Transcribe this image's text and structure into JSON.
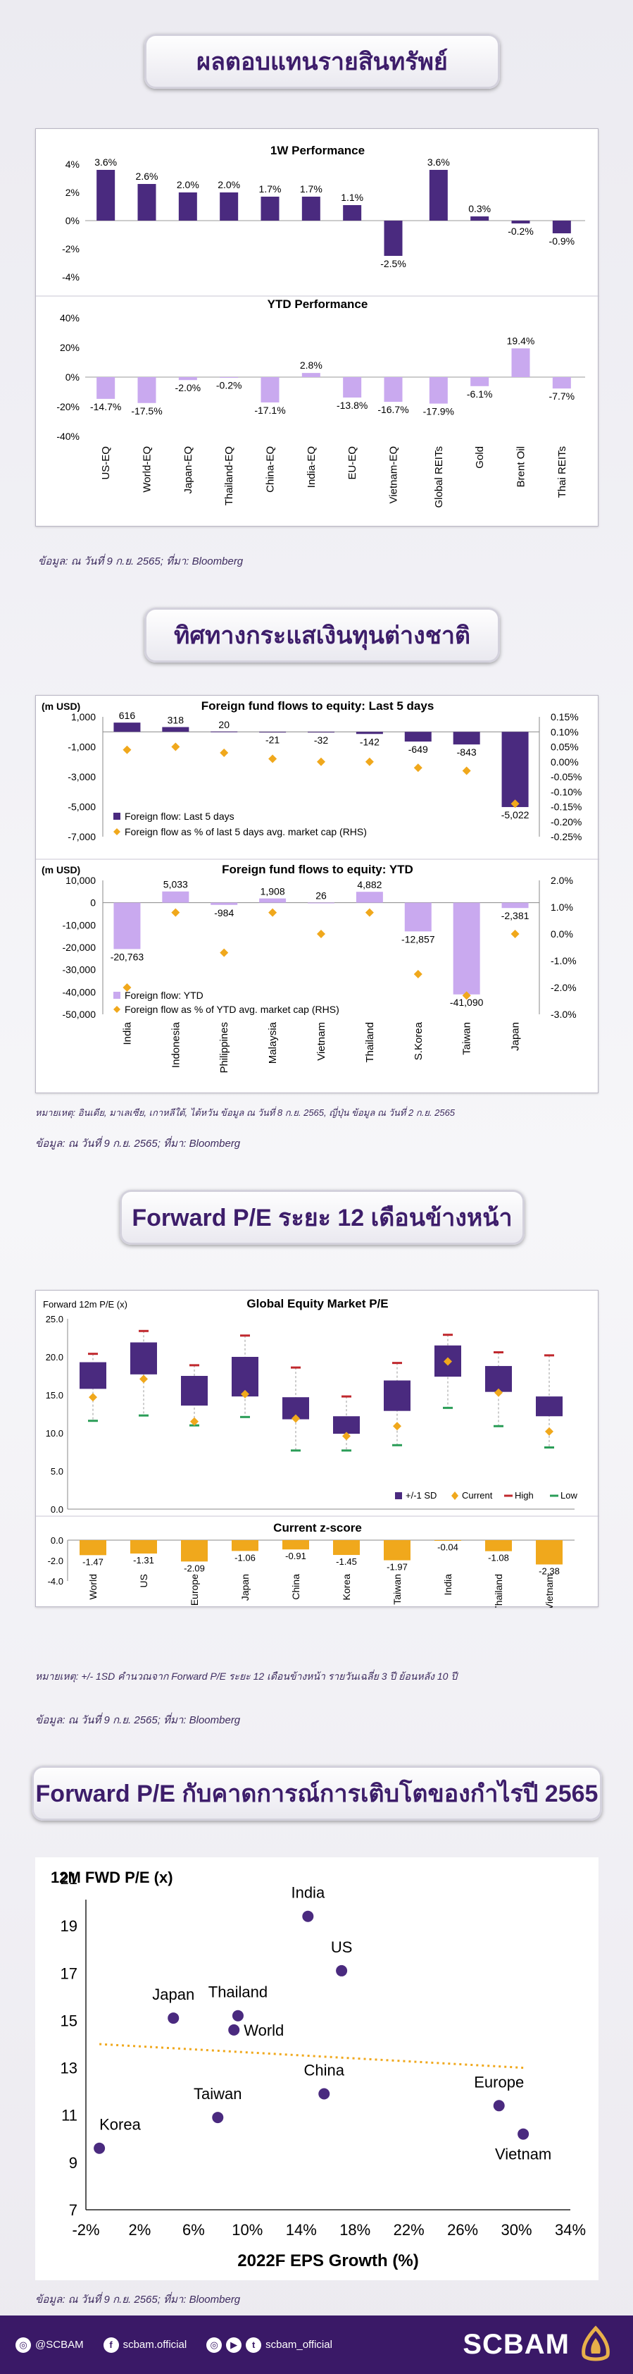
{
  "sections": {
    "asset_returns_title": "ผลตอบแทนรายสินทรัพย์",
    "foreign_flows_title": "ทิศทางกระแสเงินทุนต่างชาติ",
    "forward_pe_title": "Forward P/E ระยะ 12 เดือนข้างหน้า",
    "pe_vs_eps_title": "Forward P/E กับคาดการณ์การเติบโตของกำไรปี 2565"
  },
  "notes": {
    "source_1": "ข้อมูล: ณ วันที่ 9 ก.ย. 2565; ที่มา: Bloomberg",
    "remark_2": "หมายเหตุ: อินเดีย, มาเลเซีย, เกาหลีใต้, ไต้หวัน ข้อมูล ณ วันที่ 8 ก.ย. 2565, ญี่ปุ่น ข้อมูล ณ วันที่ 2 ก.ย. 2565",
    "source_2": "ข้อมูล: ณ วันที่ 9 ก.ย. 2565; ที่มา: Bloomberg",
    "remark_3": "หมายเหตุ: +/- 1SD คำนวณจาก Forward P/E ระยะ 12 เดือนข้างหน้า รายวันเฉลี่ย 3 ปี ย้อนหลัง 10 ปี",
    "source_3": "ข้อมูล: ณ วันที่ 9 ก.ย. 2565; ที่มา: Bloomberg",
    "source_4": "ข้อมูล: ณ วันที่ 9 ก.ย. 2565; ที่มา: Bloomberg"
  },
  "footer": {
    "ig_handle": "@SCBAM",
    "fb_handle": "scbam.official",
    "tw_handle": "scbam_official",
    "brand": "SCBAM"
  },
  "chart_data": [
    {
      "type": "bar",
      "title": "1W Performance",
      "categories": [
        "US-EQ",
        "World-EQ",
        "Japan-EQ",
        "Thailand-EQ",
        "China-EQ",
        "India-EQ",
        "EU-EQ",
        "Vietnam-EQ",
        "Global REITs",
        "Gold",
        "Brent Oil",
        "Thai REITs"
      ],
      "values": [
        3.6,
        2.6,
        2.0,
        2.0,
        1.7,
        1.7,
        1.1,
        -2.5,
        3.6,
        0.3,
        -0.2,
        -0.9
      ],
      "data_labels": [
        "3.6%",
        "2.6%",
        "2.0%",
        "2.0%",
        "1.7%",
        "1.7%",
        "1.1%",
        "-2.5%",
        "3.6%",
        "0.3%",
        "-0.2%",
        "-0.9%"
      ],
      "y_ticks": [
        "4%",
        "2%",
        "0%",
        "-2%",
        "-4%"
      ],
      "ylim": [
        -4,
        4
      ],
      "color": "#4a2a7f"
    },
    {
      "type": "bar",
      "title": "YTD Performance",
      "categories": [
        "US-EQ",
        "World-EQ",
        "Japan-EQ",
        "Thailand-EQ",
        "China-EQ",
        "India-EQ",
        "EU-EQ",
        "Vietnam-EQ",
        "Global REITs",
        "Gold",
        "Brent Oil",
        "Thai REITs"
      ],
      "values": [
        -14.7,
        -17.5,
        -2.0,
        -0.2,
        -17.1,
        2.8,
        -13.8,
        -16.7,
        -17.9,
        -6.1,
        19.4,
        -7.7
      ],
      "data_labels": [
        "-14.7%",
        "-17.5%",
        "-2.0%",
        "-0.2%",
        "-17.1%",
        "2.8%",
        "-13.8%",
        "-16.7%",
        "-17.9%",
        "-6.1%",
        "19.4%",
        "-7.7%"
      ],
      "y_ticks": [
        "40%",
        "20%",
        "0%",
        "-20%",
        "-40%"
      ],
      "ylim": [
        -40,
        40
      ],
      "color": "#c9a9ef"
    },
    {
      "type": "bar",
      "title": "Foreign fund flows to equity: Last 5 days",
      "ylabel": "(m USD)",
      "categories": [
        "India",
        "Indonesia",
        "Philippines",
        "Malaysia",
        "Vietnam",
        "Thailand",
        "S.Korea",
        "Taiwan",
        "Japan"
      ],
      "series": [
        {
          "name": "Foreign flow: Last 5 days",
          "values": [
            616,
            318,
            20,
            -21,
            -32,
            -142,
            -649,
            -843,
            -5022
          ],
          "color": "#4a2a7f"
        },
        {
          "name": "Foreign flow as % of last 5 days avg. market cap (RHS)",
          "values": [
            0.04,
            0.05,
            0.03,
            0.01,
            0.0,
            0.0,
            -0.02,
            -0.03,
            -0.14
          ],
          "color": "#f0a81c"
        }
      ],
      "data_labels": [
        "616",
        "318",
        "20",
        "-21",
        "-32",
        "-142",
        "-649",
        "-843",
        "-5,022"
      ],
      "y_ticks": [
        "1,000",
        "-1,000",
        "-3,000",
        "-5,000",
        "-7,000"
      ],
      "ylim": [
        -7000,
        1000
      ],
      "y2_ticks": [
        "0.15%",
        "0.10%",
        "0.05%",
        "0.00%",
        "-0.05%",
        "-0.10%",
        "-0.15%",
        "-0.20%",
        "-0.25%"
      ],
      "y2lim": [
        -0.25,
        0.15
      ]
    },
    {
      "type": "bar",
      "title": "Foreign fund flows to equity: YTD",
      "ylabel": "(m USD)",
      "categories": [
        "India",
        "Indonesia",
        "Philippines",
        "Malaysia",
        "Vietnam",
        "Thailand",
        "S.Korea",
        "Taiwan",
        "Japan"
      ],
      "series": [
        {
          "name": "Foreign flow: YTD",
          "values": [
            -20763,
            5033,
            -984,
            1908,
            26,
            4882,
            -12857,
            -41090,
            -2381
          ],
          "color": "#c9a9ef"
        },
        {
          "name": "Foreign flow as % of YTD avg. market cap (RHS)",
          "values": [
            -2.0,
            0.8,
            -0.7,
            0.8,
            0.0,
            0.8,
            -1.5,
            -2.3,
            0.0
          ],
          "color": "#f0a81c"
        }
      ],
      "data_labels": [
        "-20,763",
        "5,033",
        "-984",
        "1,908",
        "26",
        "4,882",
        "-12,857",
        "-41,090",
        "-2,381"
      ],
      "y_ticks": [
        "10,000",
        "0",
        "-10,000",
        "-20,000",
        "-30,000",
        "-40,000",
        "-50,000"
      ],
      "ylim": [
        -50000,
        10000
      ],
      "y2_ticks": [
        "2.0%",
        "1.0%",
        "0.0%",
        "-1.0%",
        "-2.0%",
        "-3.0%"
      ],
      "y2lim": [
        -3,
        2
      ]
    },
    {
      "type": "box",
      "title": "Global Equity Market P/E",
      "ylabel": "Forward 12m P/E (x)",
      "categories": [
        "World",
        "US",
        "Europe",
        "Japan",
        "China",
        "Korea",
        "Taiwan",
        "India",
        "Thailand",
        "Vietnam"
      ],
      "sd_low": [
        15.8,
        17.7,
        13.6,
        14.8,
        11.8,
        9.9,
        12.9,
        17.4,
        15.4,
        12.2
      ],
      "sd_high": [
        19.3,
        21.9,
        17.5,
        20.0,
        14.7,
        12.2,
        16.9,
        21.5,
        18.8,
        14.8
      ],
      "current": [
        14.7,
        17.1,
        11.5,
        15.1,
        11.9,
        9.6,
        10.9,
        19.4,
        15.3,
        10.2
      ],
      "high": [
        20.4,
        23.4,
        18.9,
        22.8,
        18.6,
        14.8,
        19.2,
        22.9,
        20.6,
        20.2
      ],
      "low": [
        11.6,
        12.3,
        11.0,
        12.1,
        7.7,
        7.7,
        8.4,
        13.3,
        10.9,
        8.1
      ],
      "legend": [
        "+/-1 SD",
        "Current",
        "High",
        "Low"
      ],
      "y_ticks": [
        "25.0",
        "20.0",
        "15.0",
        "10.0",
        "5.0",
        "0.0"
      ],
      "ylim": [
        0,
        25
      ],
      "colors": {
        "box": "#4a2a7f",
        "current": "#f0a81c",
        "high": "#c0282d",
        "low": "#2a9d57"
      }
    },
    {
      "type": "bar",
      "title": "Current z-score",
      "categories": [
        "World",
        "US",
        "Europe",
        "Japan",
        "China",
        "Korea",
        "Taiwan",
        "India",
        "Thailand",
        "Vietnam"
      ],
      "values": [
        -1.47,
        -1.31,
        -2.09,
        -1.06,
        -0.91,
        -1.45,
        -1.97,
        -0.04,
        -1.08,
        -2.38
      ],
      "data_labels": [
        "-1.47",
        "-1.31",
        "-2.09",
        "-1.06",
        "-0.91",
        "-1.45",
        "-1.97",
        "-0.04",
        "-1.08",
        "-2.38"
      ],
      "y_ticks": [
        "0.0",
        "-2.0",
        "-4.0"
      ],
      "ylim": [
        -4,
        0
      ],
      "color": "#f0a81c"
    },
    {
      "type": "scatter",
      "title": "12M FWD P/E (x)",
      "xlabel": "2022F EPS Growth (%)",
      "points": [
        {
          "label": "India",
          "x": 14.5,
          "y": 19.4
        },
        {
          "label": "US",
          "x": 17.0,
          "y": 17.1
        },
        {
          "label": "Japan",
          "x": 4.5,
          "y": 15.1
        },
        {
          "label": "Thailand",
          "x": 9.3,
          "y": 15.2
        },
        {
          "label": "World",
          "x": 9.0,
          "y": 14.6
        },
        {
          "label": "China",
          "x": 15.7,
          "y": 11.9
        },
        {
          "label": "Taiwan",
          "x": 7.8,
          "y": 10.9
        },
        {
          "label": "Europe",
          "x": 28.7,
          "y": 11.4
        },
        {
          "label": "Korea",
          "x": -1.0,
          "y": 9.6
        },
        {
          "label": "Vietnam",
          "x": 30.5,
          "y": 10.2
        }
      ],
      "trendline": [
        {
          "x": -1.0,
          "y": 14.0
        },
        {
          "x": 30.5,
          "y": 13.0
        }
      ],
      "x_ticks": [
        "-2%",
        "2%",
        "6%",
        "10%",
        "14%",
        "18%",
        "22%",
        "26%",
        "30%",
        "34%"
      ],
      "xlim": [
        -2,
        34
      ],
      "y_ticks": [
        "21",
        "19",
        "17",
        "15",
        "13",
        "11",
        "9",
        "7"
      ],
      "ylim": [
        7,
        21
      ],
      "colors": {
        "point": "#4a2a7f",
        "trend": "#f0a81c"
      }
    }
  ]
}
